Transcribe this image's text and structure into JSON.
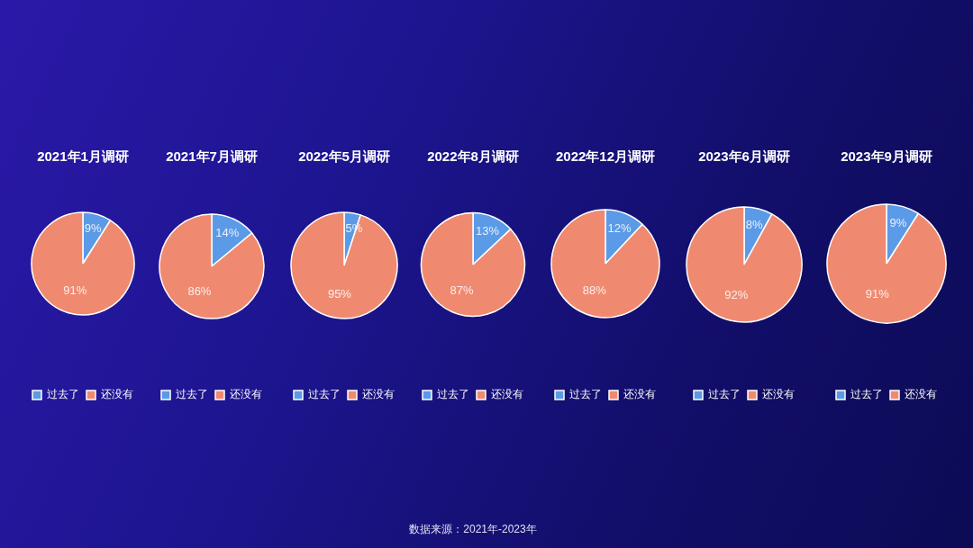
{
  "chart_data": [
    {
      "type": "pie",
      "title": "2021年1月调研",
      "categories": [
        "过去了",
        "还没有"
      ],
      "values": [
        9,
        91
      ],
      "value_labels": [
        "9%",
        "91%"
      ],
      "colors": [
        "#5b9ae6",
        "#ef8a71"
      ],
      "legend": "bottom"
    },
    {
      "type": "pie",
      "title": "2021年7月调研",
      "categories": [
        "过去了",
        "还没有"
      ],
      "values": [
        14,
        86
      ],
      "value_labels": [
        "14%",
        "86%"
      ],
      "colors": [
        "#5b9ae6",
        "#ef8a71"
      ],
      "legend": "bottom"
    },
    {
      "type": "pie",
      "title": "2022年5月调研",
      "categories": [
        "过去了",
        "还没有"
      ],
      "values": [
        5,
        95
      ],
      "value_labels": [
        "5%",
        "95%"
      ],
      "colors": [
        "#5b9ae6",
        "#ef8a71"
      ],
      "legend": "bottom"
    },
    {
      "type": "pie",
      "title": "2022年8月调研",
      "categories": [
        "过去了",
        "还没有"
      ],
      "values": [
        13,
        87
      ],
      "value_labels": [
        "13%",
        "87%"
      ],
      "colors": [
        "#5b9ae6",
        "#ef8a71"
      ],
      "legend": "bottom",
      "annotations": [
        "数据来源：2021年-2023年"
      ]
    },
    {
      "type": "pie",
      "title": "2022年12月调研",
      "categories": [
        "过去了",
        "还没有"
      ],
      "values": [
        12,
        88
      ],
      "value_labels": [
        "12%",
        "88%"
      ],
      "colors": [
        "#5b9ae6",
        "#ef8a71"
      ],
      "legend": "bottom"
    },
    {
      "type": "pie",
      "title": "2023年6月调研",
      "categories": [
        "过去了",
        "还没有"
      ],
      "values": [
        8,
        92
      ],
      "value_labels": [
        "8%",
        "92%"
      ],
      "colors": [
        "#5b9ae6",
        "#ef8a71"
      ],
      "legend": "bottom"
    },
    {
      "type": "pie",
      "title": "2023年9月调研",
      "categories": [
        "过去了",
        "还没有"
      ],
      "values": [
        9,
        91
      ],
      "value_labels": [
        "9%",
        "91%"
      ],
      "colors": [
        "#5b9ae6",
        "#ef8a71"
      ],
      "legend": "bottom"
    }
  ]
}
